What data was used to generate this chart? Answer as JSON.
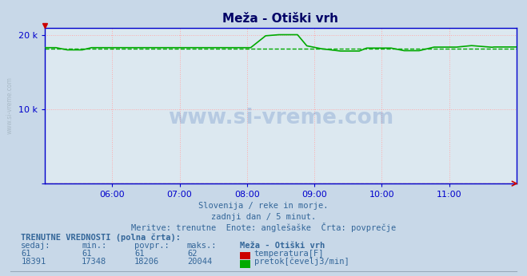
{
  "title": "Meža - Otiški vrh",
  "bg_color": "#c8d8e8",
  "plot_bg_color": "#dce8f0",
  "grid_color": "#ffaaaa",
  "x_tick_positions": [
    36,
    72,
    108,
    144,
    180,
    216
  ],
  "x_tick_labels": [
    "06:00",
    "07:00",
    "08:00",
    "09:00",
    "10:00",
    "11:00"
  ],
  "ylim_min": 0,
  "ylim_max": 21000,
  "temp_color": "#cc0000",
  "flow_color": "#00aa00",
  "avg_flow": 18206,
  "avg_temp": 61,
  "watermark": "www.si-vreme.com",
  "subtitle1": "Slovenija / reke in morje.",
  "subtitle2": "zadnji dan / 5 minut.",
  "subtitle3": "Meritve: trenutne  Enote: anglešaške  Črta: povprečje",
  "footer_header": "TRENUTNE VREDNOSTI (polna črta):",
  "col_sedaj": "sedaj:",
  "col_min": "min.:",
  "col_povpr": "povpr.:",
  "col_maks": "maks.:",
  "station": "Meža - Otiški vrh",
  "temp_sedaj": 61,
  "temp_min": 61,
  "temp_povpr": 61,
  "temp_maks": 62,
  "flow_sedaj": 18391,
  "flow_min": 17348,
  "flow_povpr": 18206,
  "flow_maks": 20044,
  "temp_label": "temperatura[F]",
  "flow_label": "pretok[čevelj3/min]",
  "left_label": "www.si-vreme.com",
  "axis_color": "#0000cc",
  "text_color": "#336699",
  "title_color": "#000066"
}
